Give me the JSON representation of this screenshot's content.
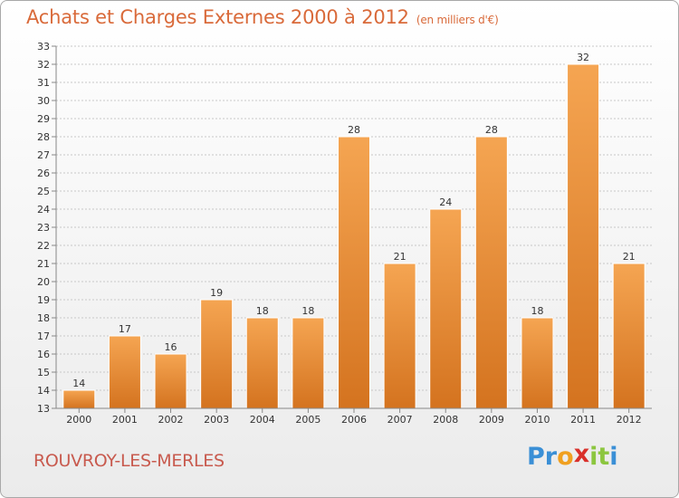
{
  "title": "Achats et Charges Externes 2000 à 2012",
  "subtitle": "(en milliers d'€)",
  "commune": "ROUVROY-LES-MERLES",
  "logo": {
    "letters": [
      "P",
      "r",
      "o",
      "x",
      "i",
      "t",
      "i"
    ],
    "colors": [
      "#3a8fd6",
      "#3a8fd6",
      "#f0a020",
      "#d9302a",
      "#8cc63f",
      "#8cc63f",
      "#3a8fd6"
    ]
  },
  "colors": {
    "bar_top": "#f5a552",
    "bar_bottom": "#d4731f",
    "bar_edge": "#ffffff",
    "grid": "#c8c8c8",
    "axis": "#888888",
    "label": "#333333"
  },
  "chart_data": {
    "type": "bar",
    "categories": [
      "2000",
      "2001",
      "2002",
      "2003",
      "2004",
      "2005",
      "2006",
      "2007",
      "2008",
      "2009",
      "2010",
      "2011",
      "2012"
    ],
    "values": [
      14,
      17,
      16,
      19,
      18,
      18,
      28,
      21,
      24,
      28,
      18,
      32,
      21
    ],
    "value_labels": [
      "14",
      "17",
      "16",
      "19",
      "18",
      "18",
      "28",
      "21",
      "24",
      "28",
      "18",
      "32",
      "21"
    ],
    "ylim": [
      13,
      33
    ],
    "yticks": [
      "13",
      "14",
      "15",
      "16",
      "17",
      "18",
      "19",
      "20",
      "21",
      "22",
      "23",
      "24",
      "25",
      "26",
      "27",
      "28",
      "29",
      "30",
      "31",
      "32",
      "33"
    ],
    "grid": true
  }
}
